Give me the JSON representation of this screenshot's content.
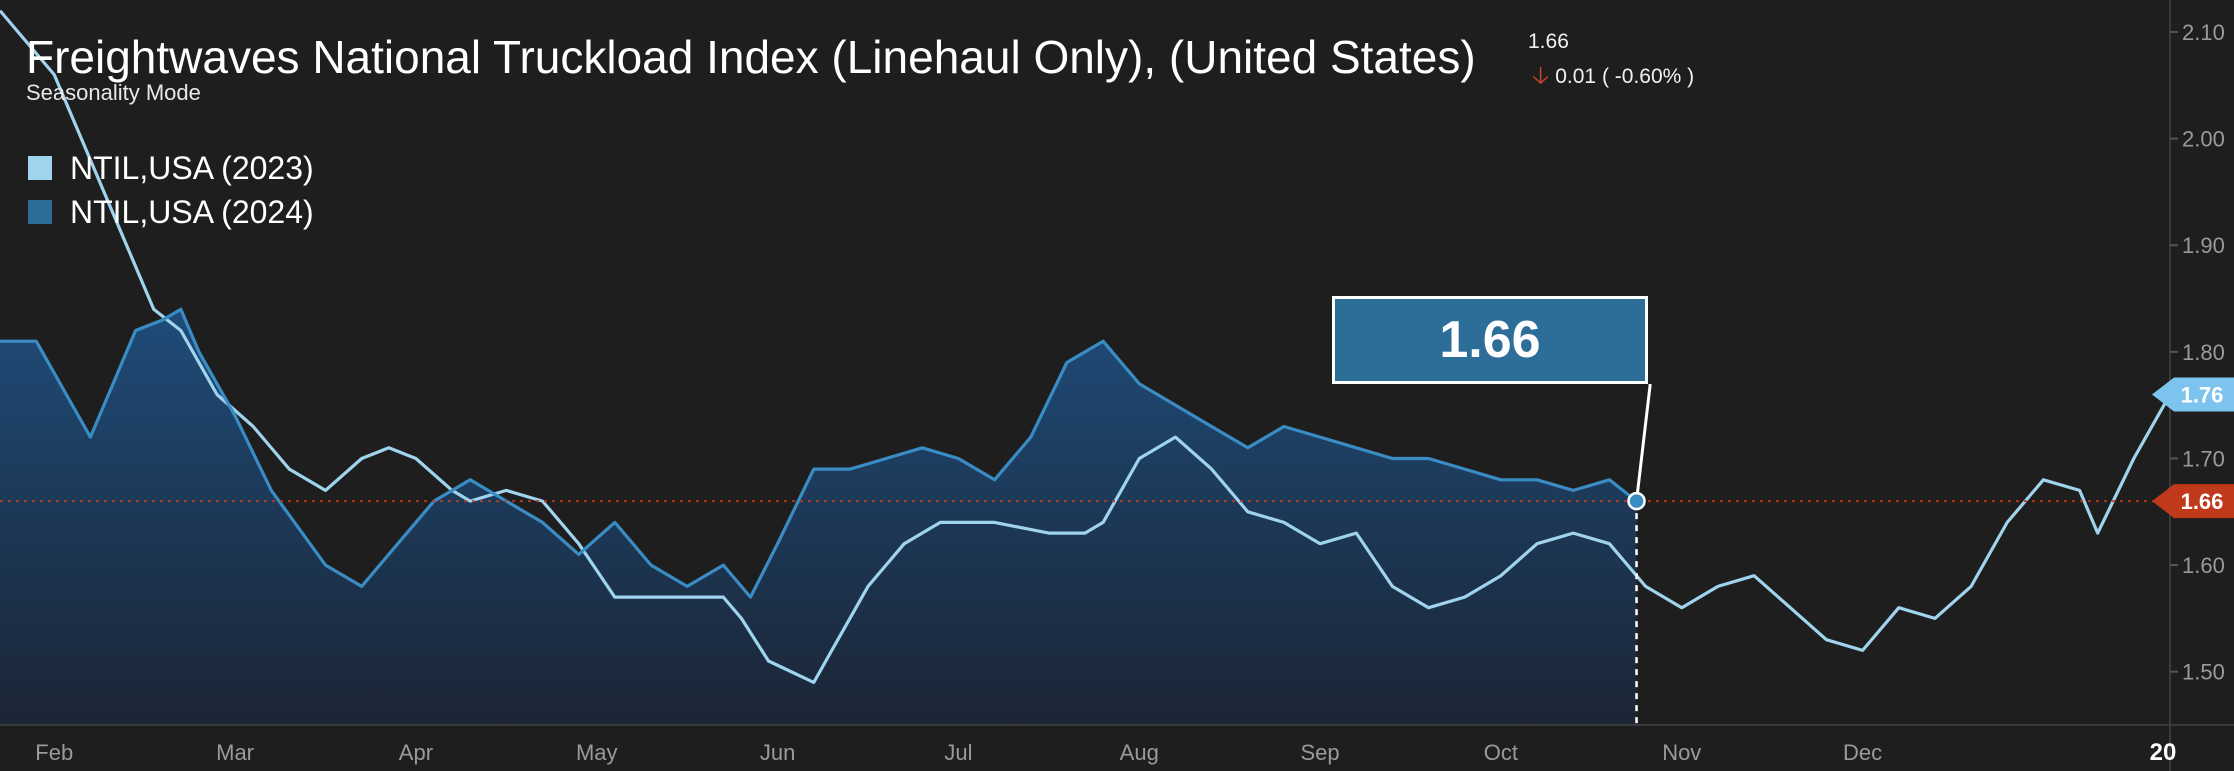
{
  "header": {
    "title": "Freightwaves National Truckload Index (Linehaul Only), (United States)",
    "subtitle": "Seasonality Mode",
    "last_value": "1.66",
    "change": "0.01 ( -0.60% )"
  },
  "callout": {
    "value": "1.66"
  },
  "colors": {
    "background": "#1e1e1e",
    "series_2023": "#9fd3ee",
    "series_2024": "#3a8cc4",
    "area_2024_top": "#1e4e7e",
    "area_2024_bottom": "#1b2638",
    "badge_2023": "#7cc3ee",
    "badge_2024": "#c0391b",
    "reference_line": "#c0391b",
    "axis_text": "#9a9a9a"
  },
  "chart_data": {
    "type": "area",
    "title": "Freightwaves National Truckload Index (Linehaul Only), (United States)",
    "xlabel": "",
    "ylabel": "",
    "x_tick_labels": [
      "Feb",
      "Mar",
      "Apr",
      "May",
      "Jun",
      "Jul",
      "Aug",
      "Sep",
      "Oct",
      "Nov",
      "Dec",
      "20"
    ],
    "y_ticks": [
      1.5,
      1.6,
      1.7,
      1.8,
      1.9,
      2.0,
      2.1
    ],
    "y_tick_labels": [
      "1.50",
      "1.60",
      "1.70",
      "1.80",
      "1.90",
      "2.00",
      "2.10"
    ],
    "ylim": [
      1.45,
      2.13
    ],
    "xlim_months": [
      0.0,
      12.0
    ],
    "grid": false,
    "legend_position": "top-left",
    "reference_line": 1.66,
    "badges": [
      {
        "label": "1.76",
        "series": "NTIL,USA (2023)"
      },
      {
        "label": "1.66",
        "series": "NTIL,USA (2024)"
      }
    ],
    "series": [
      {
        "name": "NTIL,USA (2023)",
        "x": [
          0.0,
          0.3,
          0.6,
          0.85,
          1.0,
          1.2,
          1.4,
          1.6,
          1.8,
          2.0,
          2.15,
          2.3,
          2.5,
          2.6,
          2.8,
          3.0,
          3.2,
          3.4,
          3.6,
          3.8,
          4.0,
          4.1,
          4.25,
          4.5,
          4.6,
          4.8,
          5.0,
          5.2,
          5.5,
          5.8,
          6.0,
          6.1,
          6.3,
          6.5,
          6.7,
          6.9,
          7.1,
          7.3,
          7.5,
          7.7,
          7.9,
          8.1,
          8.3,
          8.5,
          8.7,
          8.9,
          9.1,
          9.3,
          9.5,
          9.7,
          9.9,
          10.1,
          10.3,
          10.5,
          10.7,
          10.9,
          11.1,
          11.3,
          11.5,
          11.6,
          11.8,
          12.0
        ],
        "values": [
          2.12,
          2.06,
          1.94,
          1.84,
          1.82,
          1.76,
          1.73,
          1.69,
          1.67,
          1.7,
          1.71,
          1.7,
          1.67,
          1.66,
          1.67,
          1.66,
          1.62,
          1.57,
          1.57,
          1.57,
          1.57,
          1.55,
          1.51,
          1.49,
          1.52,
          1.58,
          1.62,
          1.64,
          1.64,
          1.63,
          1.63,
          1.64,
          1.7,
          1.72,
          1.69,
          1.65,
          1.64,
          1.62,
          1.63,
          1.58,
          1.56,
          1.57,
          1.59,
          1.62,
          1.63,
          1.62,
          1.58,
          1.56,
          1.58,
          1.59,
          1.56,
          1.53,
          1.52,
          1.56,
          1.55,
          1.58,
          1.64,
          1.68,
          1.67,
          1.63,
          1.7,
          1.76
        ]
      },
      {
        "name": "NTIL,USA (2024)",
        "x": [
          0.0,
          0.2,
          0.4,
          0.5,
          0.6,
          0.75,
          0.9,
          1.0,
          1.1,
          1.3,
          1.5,
          1.8,
          2.0,
          2.2,
          2.4,
          2.6,
          2.8,
          3.0,
          3.2,
          3.4,
          3.6,
          3.8,
          4.0,
          4.15,
          4.3,
          4.5,
          4.7,
          4.9,
          5.1,
          5.3,
          5.5,
          5.7,
          5.9,
          6.1,
          6.3,
          6.5,
          6.7,
          6.9,
          7.1,
          7.3,
          7.5,
          7.7,
          7.9,
          8.1,
          8.3,
          8.5,
          8.7,
          8.9,
          9.05
        ],
        "values": [
          1.81,
          1.81,
          1.75,
          1.72,
          1.76,
          1.82,
          1.83,
          1.84,
          1.8,
          1.74,
          1.67,
          1.6,
          1.58,
          1.62,
          1.66,
          1.68,
          1.66,
          1.64,
          1.61,
          1.64,
          1.6,
          1.58,
          1.6,
          1.57,
          1.62,
          1.69,
          1.69,
          1.7,
          1.71,
          1.7,
          1.68,
          1.72,
          1.79,
          1.81,
          1.77,
          1.75,
          1.73,
          1.71,
          1.73,
          1.72,
          1.71,
          1.7,
          1.7,
          1.69,
          1.68,
          1.68,
          1.67,
          1.68,
          1.66
        ]
      }
    ]
  }
}
